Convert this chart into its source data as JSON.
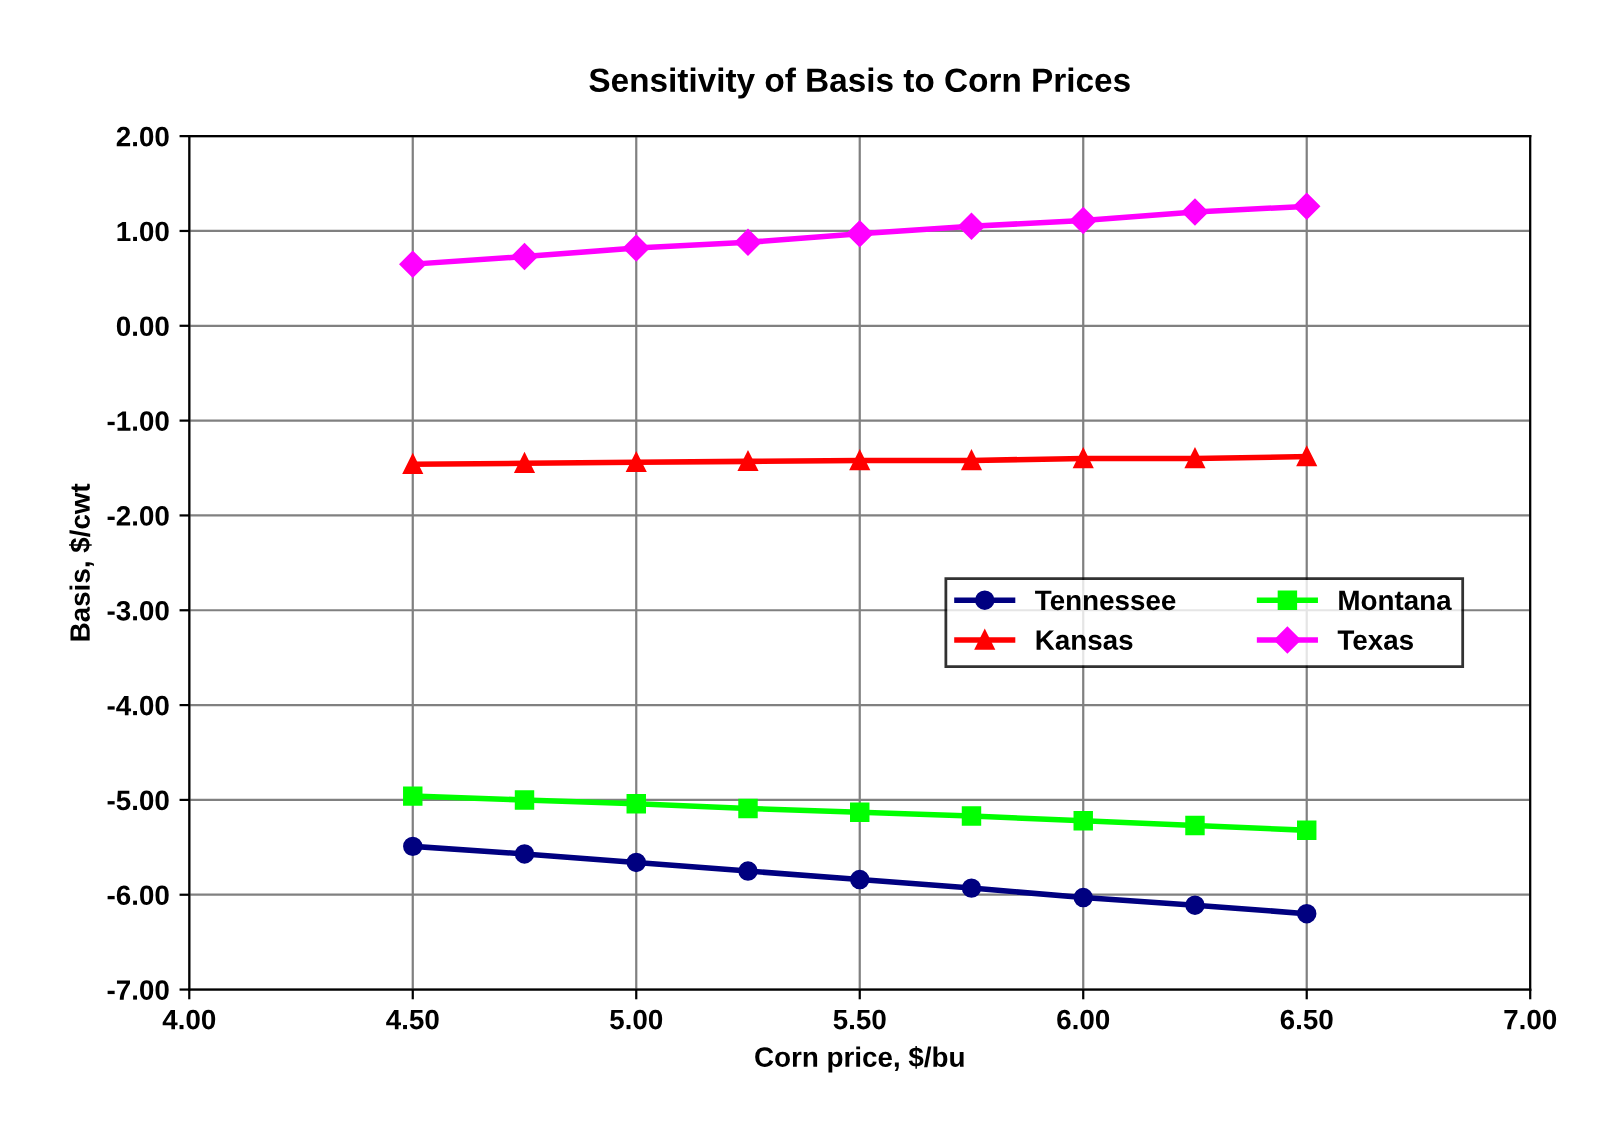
{
  "chart_data": {
    "type": "line",
    "title": "Sensitivity of Basis to Corn Prices",
    "xlabel": "Corn price, $/bu",
    "ylabel": "Basis, $/cwt",
    "x": [
      4.5,
      4.75,
      5.0,
      5.25,
      5.5,
      5.75,
      6.0,
      6.25,
      6.5
    ],
    "series": [
      {
        "name": "Tennessee",
        "color": "#000080",
        "marker": "circle",
        "values": [
          -5.49,
          -5.57,
          -5.66,
          -5.75,
          -5.84,
          -5.93,
          -6.03,
          -6.11,
          -6.2
        ]
      },
      {
        "name": "Kansas",
        "color": "#ff0000",
        "marker": "triangle",
        "values": [
          -1.46,
          -1.45,
          -1.44,
          -1.43,
          -1.42,
          -1.42,
          -1.4,
          -1.4,
          -1.38
        ]
      },
      {
        "name": "Montana",
        "color": "#00ff00",
        "marker": "square",
        "values": [
          -4.96,
          -5.0,
          -5.04,
          -5.09,
          -5.13,
          -5.17,
          -5.22,
          -5.27,
          -5.32
        ]
      },
      {
        "name": "Texas",
        "color": "#ff00ff",
        "marker": "diamond",
        "values": [
          0.65,
          0.73,
          0.82,
          0.88,
          0.97,
          1.05,
          1.11,
          1.2,
          1.26
        ]
      }
    ],
    "xlim": [
      4.0,
      7.0
    ],
    "xticks": [
      {
        "value": 4.0,
        "label": "4.00"
      },
      {
        "value": 4.5,
        "label": "4.50"
      },
      {
        "value": 5.0,
        "label": "5.00"
      },
      {
        "value": 5.5,
        "label": "5.50"
      },
      {
        "value": 6.0,
        "label": "6.00"
      },
      {
        "value": 6.5,
        "label": "6.50"
      },
      {
        "value": 7.0,
        "label": "7.00"
      }
    ],
    "ylim": [
      -7.0,
      2.0
    ],
    "yticks": [
      {
        "value": -7,
        "label": "-7.00"
      },
      {
        "value": -6,
        "label": "-6.00"
      },
      {
        "value": -5,
        "label": "-5.00"
      },
      {
        "value": -4,
        "label": "-4.00"
      },
      {
        "value": -3,
        "label": "-3.00"
      },
      {
        "value": -2,
        "label": "-2.00"
      },
      {
        "value": -1,
        "label": "-1.00"
      },
      {
        "value": 0,
        "label": "0.00"
      },
      {
        "value": 1,
        "label": "1.00"
      },
      {
        "value": 2,
        "label": "2.00"
      }
    ],
    "grid": true,
    "legend": "center right",
    "line_style": "solid"
  }
}
